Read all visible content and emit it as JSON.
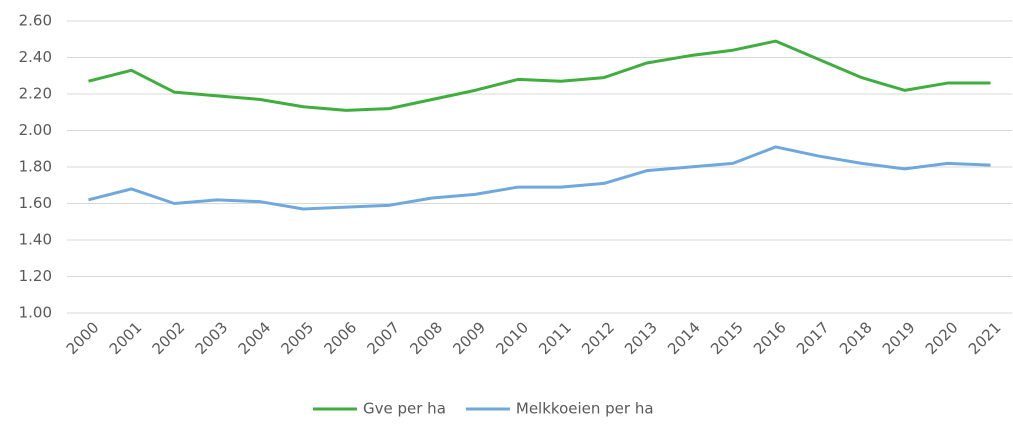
{
  "chart_data": {
    "type": "line",
    "categories": [
      "2000",
      "2001",
      "2002",
      "2003",
      "2004",
      "2005",
      "2006",
      "2007",
      "2008",
      "2009",
      "2010",
      "2011",
      "2012",
      "2013",
      "2014",
      "2015",
      "2016",
      "2017",
      "2018",
      "2019",
      "2020",
      "2021"
    ],
    "series": [
      {
        "name": "Gve per ha",
        "color": "#3fae3f",
        "values": [
          2.27,
          2.33,
          2.21,
          2.19,
          2.17,
          2.13,
          2.11,
          2.12,
          2.17,
          2.22,
          2.28,
          2.27,
          2.29,
          2.37,
          2.41,
          2.44,
          2.49,
          2.39,
          2.29,
          2.22,
          2.26,
          2.26
        ]
      },
      {
        "name": "Melkkoeien per ha",
        "color": "#6fa8dc",
        "values": [
          1.62,
          1.68,
          1.6,
          1.62,
          1.61,
          1.57,
          1.58,
          1.59,
          1.63,
          1.65,
          1.69,
          1.69,
          1.71,
          1.78,
          1.8,
          1.82,
          1.91,
          1.86,
          1.82,
          1.79,
          1.82,
          1.81
        ]
      }
    ],
    "ylim": [
      1.0,
      2.6
    ],
    "yticks": [
      {
        "value": 1.0,
        "label": "1.00"
      },
      {
        "value": 1.2,
        "label": "1.20"
      },
      {
        "value": 1.4,
        "label": "1.40"
      },
      {
        "value": 1.6,
        "label": "1.60"
      },
      {
        "value": 1.8,
        "label": "1.80"
      },
      {
        "value": 2.0,
        "label": "2.00"
      },
      {
        "value": 2.2,
        "label": "2.20"
      },
      {
        "value": 2.4,
        "label": "2.40"
      },
      {
        "value": 2.6,
        "label": "2.60"
      }
    ],
    "grid": true,
    "legend": "bottom"
  }
}
